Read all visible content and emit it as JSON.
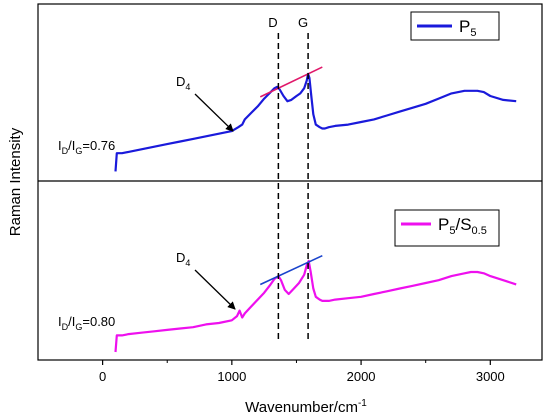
{
  "chart_data": {
    "type": "line",
    "xlabel": "Wavenumber/cm",
    "xlabel_sup": "-1",
    "ylabel": "Raman Intensity",
    "xlim": [
      -500,
      3400
    ],
    "xticks": [
      0,
      1000,
      2000,
      3000
    ],
    "xtick_labels": [
      "0",
      "1000",
      "2000",
      "3000"
    ],
    "grid": false,
    "ref_lines": [
      {
        "label": "D",
        "x": 1360
      },
      {
        "label": "G",
        "x": 1590
      }
    ],
    "panels": [
      {
        "series_name": "P",
        "series_sub": "5",
        "color": "#1a1adb",
        "legend_position": "top-right",
        "ratio_prefix": "I",
        "ratio_sub1": "D",
        "ratio_mid": "/I",
        "ratio_sub2": "G",
        "ratio_value": "=0.76",
        "annotation": "D",
        "annotation_sub": "4",
        "annotation_target_x": 1050,
        "trend_color": "#e0186a",
        "trend_x": [
          1220,
          1700
        ],
        "ylim": [
          0,
          1
        ],
        "x": [
          100,
          110,
          150,
          200,
          300,
          400,
          500,
          600,
          700,
          800,
          900,
          1000,
          1050,
          1080,
          1100,
          1150,
          1200,
          1250,
          1300,
          1330,
          1350,
          1370,
          1400,
          1430,
          1460,
          1500,
          1530,
          1560,
          1580,
          1590,
          1600,
          1615,
          1630,
          1650,
          1680,
          1700,
          1720,
          1750,
          1800,
          1900,
          2000,
          2100,
          2200,
          2300,
          2400,
          2500,
          2600,
          2700,
          2800,
          2850,
          2900,
          2950,
          3000,
          3100,
          3200
        ],
        "y": [
          0.02,
          0.16,
          0.16,
          0.17,
          0.19,
          0.21,
          0.23,
          0.25,
          0.27,
          0.29,
          0.31,
          0.33,
          0.36,
          0.38,
          0.42,
          0.47,
          0.52,
          0.58,
          0.63,
          0.66,
          0.67,
          0.65,
          0.6,
          0.56,
          0.57,
          0.6,
          0.62,
          0.66,
          0.72,
          0.77,
          0.74,
          0.6,
          0.46,
          0.38,
          0.36,
          0.35,
          0.35,
          0.36,
          0.37,
          0.38,
          0.4,
          0.42,
          0.45,
          0.48,
          0.51,
          0.54,
          0.58,
          0.62,
          0.64,
          0.64,
          0.64,
          0.63,
          0.6,
          0.57,
          0.56
        ]
      },
      {
        "series_name": "P",
        "series_sub": "5",
        "series_suffix": "/S",
        "series_sub2": "0.5",
        "color": "#ee10ee",
        "legend_position": "top-right",
        "ratio_prefix": "I",
        "ratio_sub1": "D",
        "ratio_mid": "/I",
        "ratio_sub2": "G",
        "ratio_value": "=0.80",
        "annotation": "D",
        "annotation_sub": "4",
        "annotation_target_x": 1060,
        "trend_color": "#1a44cc",
        "trend_x": [
          1220,
          1700
        ],
        "ylim": [
          0,
          1
        ],
        "x": [
          100,
          110,
          150,
          200,
          300,
          400,
          500,
          600,
          700,
          800,
          900,
          1000,
          1040,
          1060,
          1080,
          1100,
          1150,
          1200,
          1250,
          1300,
          1330,
          1360,
          1380,
          1410,
          1440,
          1480,
          1520,
          1560,
          1580,
          1595,
          1610,
          1630,
          1650,
          1680,
          1700,
          1750,
          1800,
          1900,
          2000,
          2100,
          2200,
          2300,
          2400,
          2500,
          2600,
          2700,
          2800,
          2850,
          2900,
          2950,
          3000,
          3100,
          3200
        ],
        "y": [
          0.0,
          0.12,
          0.12,
          0.13,
          0.14,
          0.15,
          0.16,
          0.17,
          0.18,
          0.2,
          0.21,
          0.23,
          0.26,
          0.3,
          0.25,
          0.28,
          0.33,
          0.38,
          0.43,
          0.49,
          0.53,
          0.55,
          0.52,
          0.45,
          0.42,
          0.46,
          0.5,
          0.56,
          0.63,
          0.66,
          0.58,
          0.46,
          0.4,
          0.38,
          0.37,
          0.37,
          0.38,
          0.39,
          0.4,
          0.42,
          0.44,
          0.46,
          0.48,
          0.5,
          0.52,
          0.55,
          0.57,
          0.58,
          0.58,
          0.57,
          0.55,
          0.52,
          0.49
        ]
      }
    ]
  }
}
